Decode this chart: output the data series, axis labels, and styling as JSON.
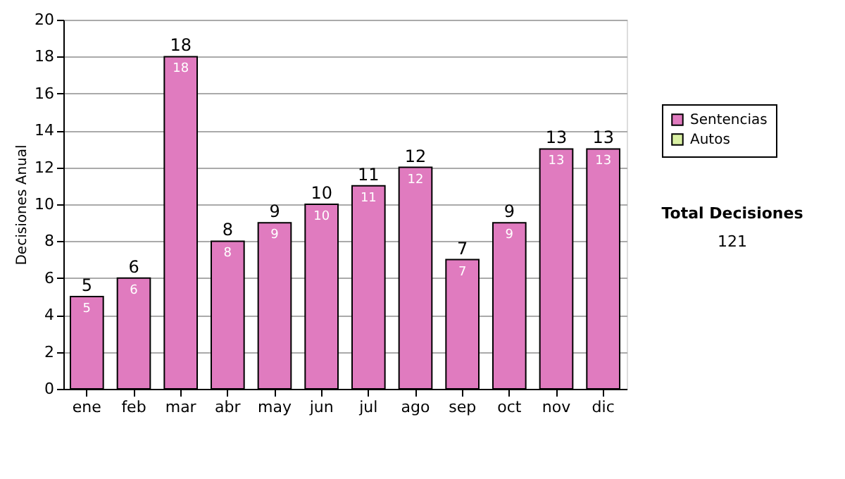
{
  "chart_data": {
    "type": "bar",
    "ylabel": "Decisiones Anual",
    "categories": [
      "ene",
      "feb",
      "mar",
      "abr",
      "may",
      "jun",
      "jul",
      "ago",
      "sep",
      "oct",
      "nov",
      "dic"
    ],
    "series": [
      {
        "name": "Sentencias",
        "color": "#e07bbf",
        "values": [
          5,
          6,
          18,
          8,
          9,
          10,
          11,
          12,
          7,
          9,
          13,
          13
        ],
        "value_labels": [
          "5",
          "6",
          "18",
          "8",
          "9",
          "10",
          "11",
          "12",
          "7",
          "9",
          "13",
          "13"
        ]
      },
      {
        "name": "Autos",
        "color": "#d9f0a3",
        "values": [
          null,
          null,
          null,
          null,
          null,
          null,
          null,
          null,
          null,
          null,
          null,
          null
        ]
      }
    ],
    "stacked": true,
    "totals": [
      "5",
      "6",
      "18",
      "8",
      "9",
      "10",
      "11",
      "12",
      "7",
      "9",
      "13",
      "13"
    ],
    "ylim": [
      0,
      20
    ],
    "yticks": [
      0,
      2,
      4,
      6,
      8,
      10,
      12,
      14,
      16,
      18,
      20
    ],
    "grid": "y",
    "legend": "right",
    "annotations": [
      "Total Decisiones",
      "121"
    ]
  }
}
